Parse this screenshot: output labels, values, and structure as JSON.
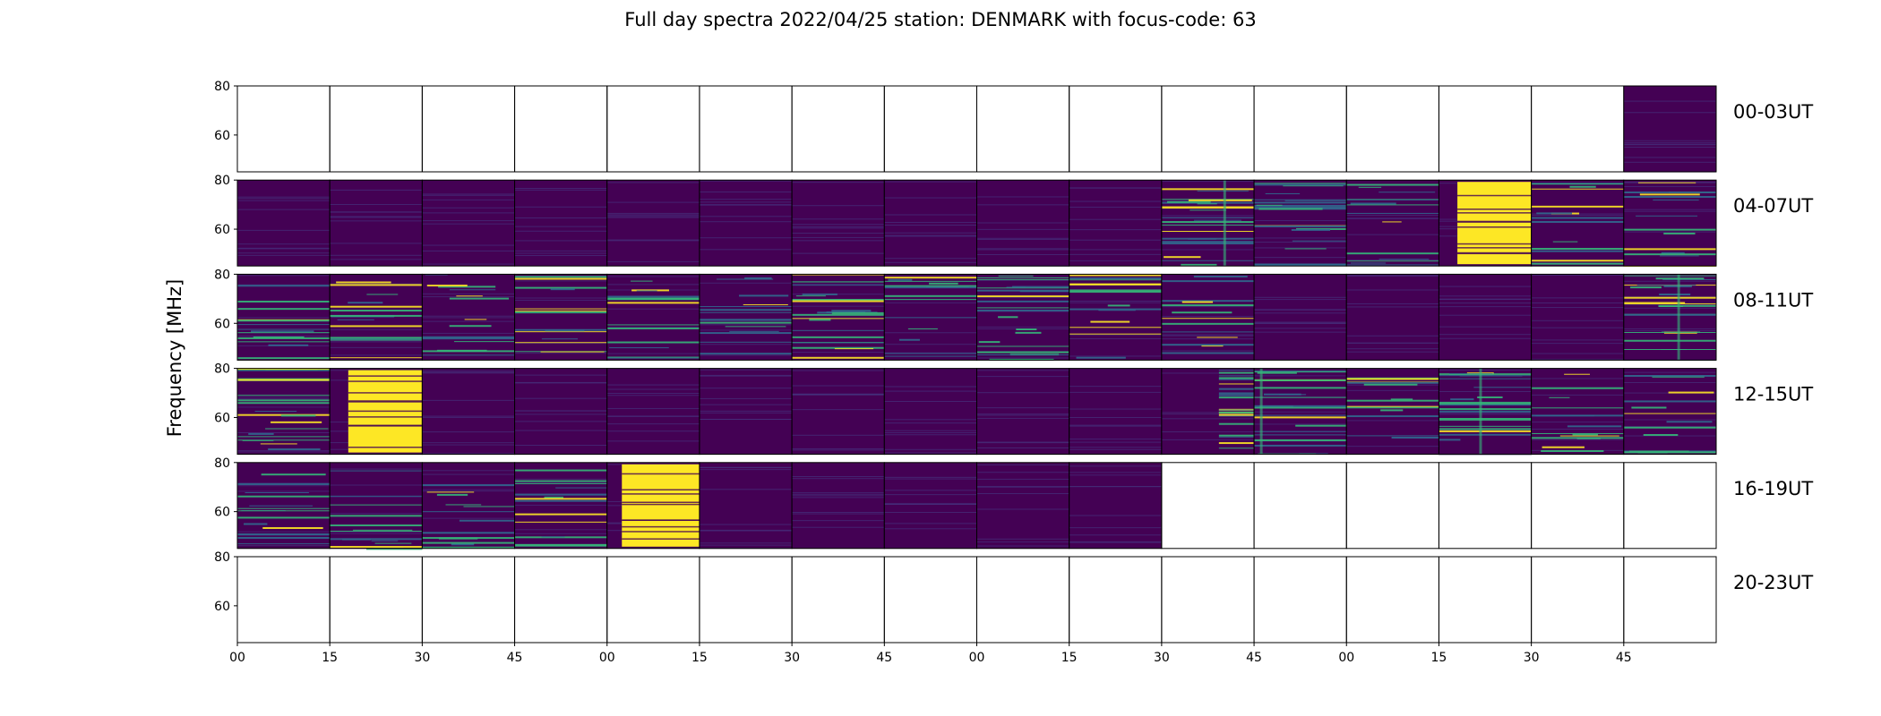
{
  "chart_data": {
    "type": "heatmap",
    "title": "Full day spectra 2022/04/25 station: DENMARK with focus-code: 63",
    "ylabel": "Frequency [MHz]",
    "xlabel": "",
    "ylim": [
      45,
      80
    ],
    "y_ticks": [
      "80",
      "60"
    ],
    "x_ticks": [
      "00",
      "15",
      "30",
      "45",
      "00",
      "15",
      "30",
      "45",
      "00",
      "15",
      "30",
      "45",
      "00",
      "15",
      "30",
      "45"
    ],
    "colormap": "viridis",
    "colors": {
      "background": "#440154",
      "mid": "#31688e",
      "accent": "#35b779",
      "high": "#fde725"
    },
    "rows": [
      {
        "label": "00-03UT",
        "panels": [
          "empty",
          "empty",
          "empty",
          "empty",
          "empty",
          "empty",
          "empty",
          "empty",
          "empty",
          "empty",
          "empty",
          "empty",
          "empty",
          "empty",
          "empty",
          "quiet"
        ]
      },
      {
        "label": "04-07UT",
        "panels": [
          "quiet",
          "quiet",
          "quiet",
          "quiet",
          "quiet",
          "quiet",
          "quiet",
          "quiet",
          "quiet",
          "quiet",
          "busy",
          "busy",
          "lines",
          "bright-right",
          "lines",
          "lines"
        ]
      },
      {
        "label": "08-11UT",
        "panels": [
          "lines",
          "lines",
          "lines",
          "lines",
          "lines",
          "lines",
          "busy",
          "lines",
          "busy",
          "lines",
          "lines",
          "quiet",
          "quiet",
          "quiet",
          "quiet",
          "busy"
        ]
      },
      {
        "label": "12-15UT",
        "panels": [
          "busy",
          "bright-right",
          "quiet",
          "quiet",
          "quiet",
          "quiet",
          "quiet",
          "quiet",
          "quiet",
          "quiet",
          "busy-right",
          "busy",
          "lines",
          "busy",
          "lines",
          "lines"
        ]
      },
      {
        "label": "16-19UT",
        "panels": [
          "lines",
          "lines",
          "lines",
          "lines",
          "bright-left",
          "quiet",
          "quiet",
          "quiet",
          "quiet",
          "quiet",
          "empty",
          "empty",
          "empty",
          "empty",
          "empty",
          "empty"
        ]
      },
      {
        "label": "20-23UT",
        "panels": [
          "empty",
          "empty",
          "empty",
          "empty",
          "empty",
          "empty",
          "empty",
          "empty",
          "empty",
          "empty",
          "empty",
          "empty",
          "empty",
          "empty",
          "empty",
          "empty"
        ]
      }
    ]
  }
}
